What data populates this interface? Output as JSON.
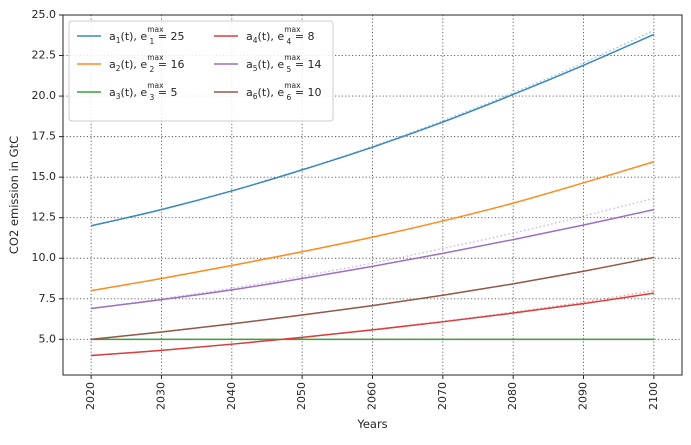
{
  "chart_data": {
    "type": "line",
    "xlabel": "Years",
    "ylabel": "CO2 emission in GtC",
    "xlim": [
      2016,
      2104
    ],
    "ylim": [
      2.8,
      25.0
    ],
    "xticks": [
      2020,
      2030,
      2040,
      2050,
      2060,
      2070,
      2080,
      2090,
      2100
    ],
    "yticks": [
      5.0,
      7.5,
      10.0,
      12.5,
      15.0,
      17.5,
      20.0,
      22.5,
      25.0
    ],
    "grid": true,
    "legend_position": "top-left",
    "x": [
      2020,
      2030,
      2040,
      2050,
      2060,
      2070,
      2080,
      2090,
      2100
    ],
    "series": [
      {
        "name": "a1(t), e1max = 25",
        "legend": {
          "fn": "a",
          "sub": "1",
          "e": "e",
          "esub": "1",
          "sup": "max",
          "value": "25"
        },
        "color": "#3a87bd",
        "values": [
          12.0,
          13.0,
          14.15,
          15.45,
          16.85,
          18.4,
          20.1,
          21.9,
          23.8
        ],
        "dotted_values": [
          12.0,
          13.02,
          14.17,
          15.47,
          16.9,
          18.48,
          20.2,
          22.05,
          24.05
        ]
      },
      {
        "name": "a2(t), e2max = 16",
        "legend": {
          "fn": "a",
          "sub": "2",
          "e": "e",
          "esub": "2",
          "sup": "max",
          "value": "16"
        },
        "color": "#ff8a1f",
        "values": [
          8.0,
          8.75,
          9.55,
          10.4,
          11.3,
          12.3,
          13.4,
          14.65,
          15.95
        ],
        "dotted_values": [
          8.0,
          8.75,
          9.55,
          10.4,
          11.3,
          12.3,
          13.4,
          14.65,
          15.95
        ]
      },
      {
        "name": "a3(t), e3max = 5",
        "legend": {
          "fn": "a",
          "sub": "3",
          "e": "e",
          "esub": "3",
          "sup": "max",
          "value": "5"
        },
        "color": "#38a13a",
        "values": [
          5.0,
          5.0,
          5.0,
          5.0,
          5.0,
          5.0,
          5.0,
          5.0,
          5.0
        ],
        "dotted_values": [
          5.0,
          5.0,
          5.0,
          5.0,
          5.0,
          5.0,
          5.0,
          5.0,
          5.0
        ]
      },
      {
        "name": "a4(t), e4max = 8",
        "legend": {
          "fn": "a",
          "sub": "4",
          "e": "e",
          "esub": "4",
          "sup": "max",
          "value": "8"
        },
        "color": "#d83c3c",
        "values": [
          4.0,
          4.32,
          4.7,
          5.12,
          5.58,
          6.08,
          6.62,
          7.2,
          7.85
        ],
        "dotted_values": [
          4.0,
          4.33,
          4.71,
          5.13,
          5.6,
          6.12,
          6.68,
          7.3,
          8.0
        ]
      },
      {
        "name": "a5(t), e5max = 14",
        "legend": {
          "fn": "a",
          "sub": "5",
          "e": "e",
          "esub": "5",
          "sup": "max",
          "value": "14"
        },
        "color": "#9b6fc4",
        "values": [
          6.9,
          7.45,
          8.05,
          8.75,
          9.5,
          10.3,
          11.15,
          12.05,
          13.0
        ],
        "dotted_values": [
          6.9,
          7.5,
          8.15,
          8.9,
          9.7,
          10.6,
          11.55,
          12.6,
          13.7
        ]
      },
      {
        "name": "a6(t), e6max = 10",
        "legend": {
          "fn": "a",
          "sub": "6",
          "e": "e",
          "esub": "6",
          "sup": "max",
          "value": "10"
        },
        "color": "#93584a",
        "values": [
          5.0,
          5.45,
          5.95,
          6.5,
          7.08,
          7.72,
          8.42,
          9.2,
          10.05
        ],
        "dotted_values": [
          5.0,
          5.45,
          5.95,
          6.5,
          7.08,
          7.72,
          8.42,
          9.2,
          10.05
        ]
      }
    ]
  }
}
